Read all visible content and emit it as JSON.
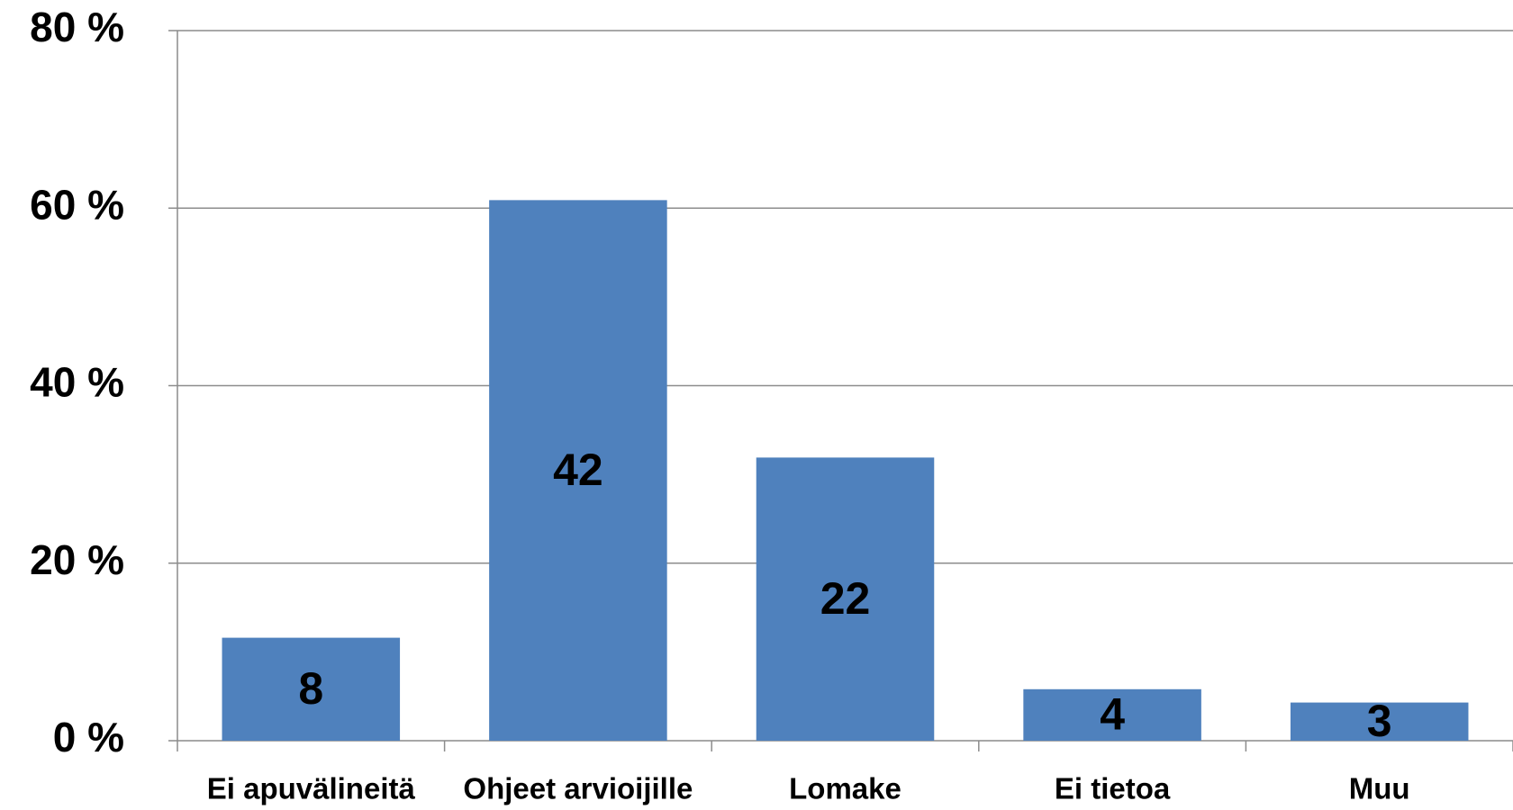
{
  "chart_data": {
    "type": "bar",
    "categories": [
      "Ei apuvälineitä",
      "Ohjeet arvioijille",
      "Lomake",
      "Ei tietoa",
      "Muu"
    ],
    "values": [
      11.6,
      60.9,
      31.9,
      5.8,
      4.3
    ],
    "counts": [
      8,
      42,
      22,
      4,
      3
    ],
    "color": "#4f81bd",
    "ylim": [
      0,
      80
    ],
    "yticks": [
      {
        "value": 0,
        "label": "0 %"
      },
      {
        "value": 20,
        "label": "20 %"
      },
      {
        "value": 40,
        "label": "40 %"
      },
      {
        "value": 60,
        "label": "60 %"
      },
      {
        "value": 80,
        "label": "80 %"
      }
    ],
    "grid": true
  }
}
